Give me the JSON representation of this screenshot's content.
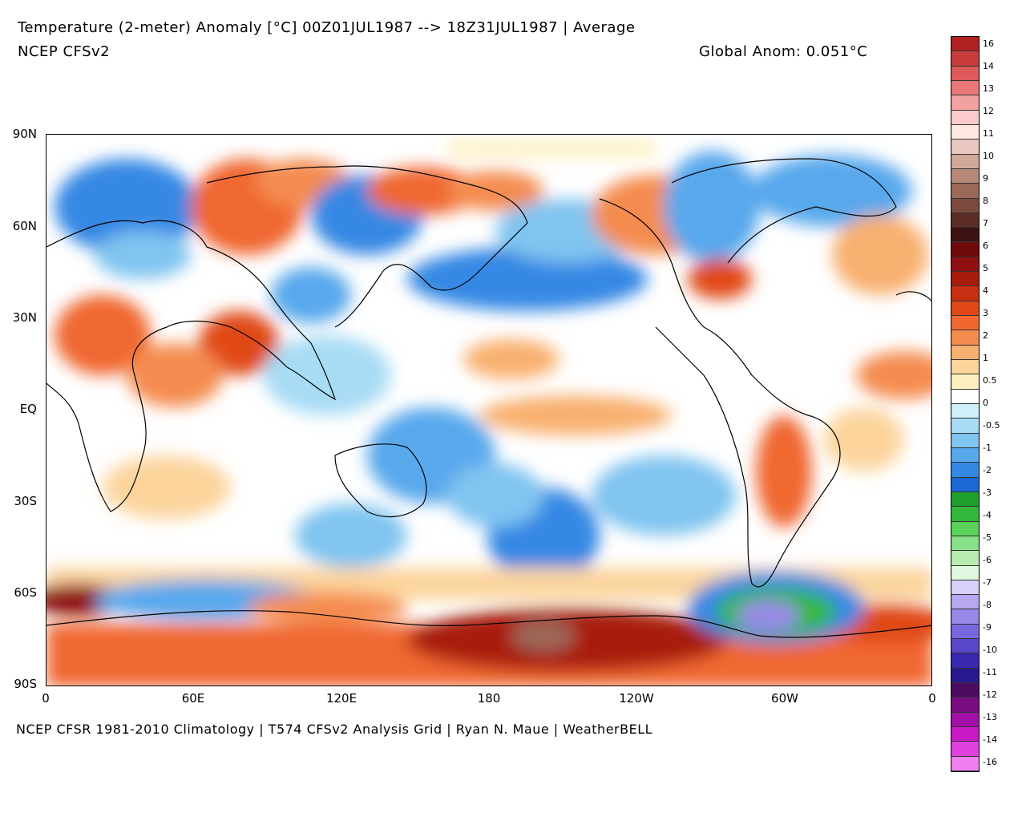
{
  "header": {
    "title": "Temperature (2-meter) Anomaly  [°C] 00Z01JUL1987 --> 18Z31JUL1987 | Average",
    "model": "NCEP CFSv2",
    "global_anom": "Global Anom: 0.051°C"
  },
  "footer": "NCEP CFSR 1981-2010 Climatology | T574 CFSv2 Analysis Grid | Ryan N. Maue | WeatherBELL",
  "axes": {
    "lat_labels": [
      "90N",
      "60N",
      "30N",
      "EQ",
      "30S",
      "60S",
      "90S"
    ],
    "lon_labels": [
      "0",
      "60E",
      "120E",
      "180",
      "120W",
      "60W",
      "0"
    ]
  },
  "colorbar": {
    "labels": [
      "16",
      "14",
      "13",
      "12",
      "11",
      "10",
      "9",
      "8",
      "7",
      "6",
      "5",
      "4",
      "3",
      "2",
      "1",
      "0.5",
      "0",
      "-0.5",
      "-1",
      "-2",
      "-3",
      "-4",
      "-5",
      "-6",
      "-7",
      "-8",
      "-9",
      "-10",
      "-11",
      "-12",
      "-13",
      "-14",
      "-16"
    ],
    "colors": [
      "#b22222",
      "#c83c3c",
      "#dc5a5a",
      "#e87878",
      "#f2a0a0",
      "#fccccc",
      "#fde8e0",
      "#e8c8c0",
      "#d0a898",
      "#b88878",
      "#9c6858",
      "#7c4a3c",
      "#5a2e24",
      "#3e1212",
      "#6e0a0a",
      "#8e1010",
      "#a81c0e",
      "#c82e10",
      "#e04818",
      "#f06830",
      "#f48c50",
      "#f8b070",
      "#fcd49c",
      "#fdf0c0",
      "#ffffff",
      "#d0f0f8",
      "#a8dcf4",
      "#80c4f0",
      "#58a8ec",
      "#3488e4",
      "#1c68d4",
      "#1e9e2c",
      "#34b83c",
      "#58d258",
      "#88e088",
      "#b8ecb0",
      "#e0f8e0",
      "#d8d0f8",
      "#b8a8f0",
      "#9888e8",
      "#7868e0",
      "#5848c8",
      "#3828b0",
      "#281890",
      "#4c0c60",
      "#780c80",
      "#a010a8",
      "#c818c8",
      "#e040e0",
      "#f080f0"
    ]
  },
  "map_regions": [
    {
      "name": "north-america-cool",
      "color": "#58a8ec"
    },
    {
      "name": "siberia-warm",
      "color": "#f06830"
    },
    {
      "name": "antarctic-warm",
      "color": "#c82e10"
    },
    {
      "name": "weddell-cold",
      "color": "#34b83c"
    }
  ]
}
